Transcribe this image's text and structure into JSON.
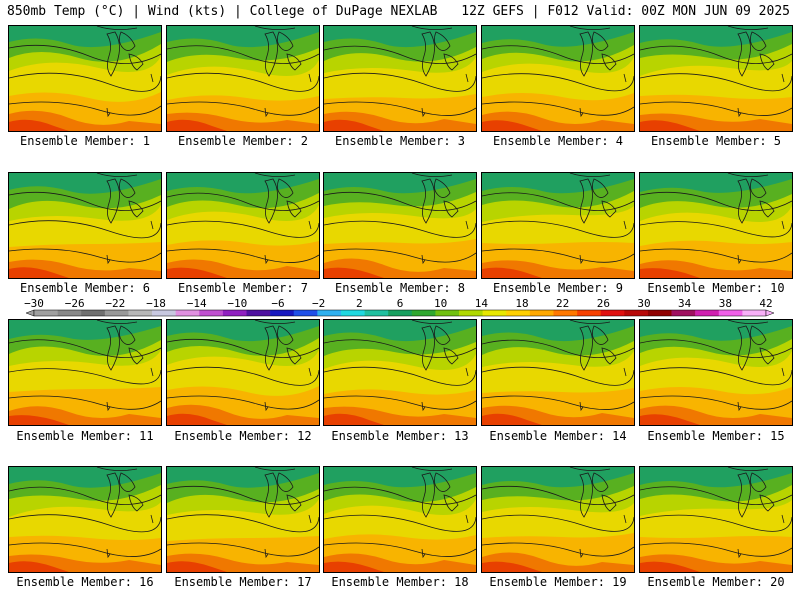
{
  "header": {
    "left": "850mb Temp (°C) | Wind (kts) | College of DuPage NEXLAB",
    "right": "12Z GEFS | F012 Valid: 00Z MON JUN 09 2025"
  },
  "members": [
    "Ensemble Member: 1",
    "Ensemble Member: 2",
    "Ensemble Member: 3",
    "Ensemble Member: 4",
    "Ensemble Member: 5",
    "Ensemble Member: 6",
    "Ensemble Member: 7",
    "Ensemble Member: 8",
    "Ensemble Member: 9",
    "Ensemble Member: 10",
    "Ensemble Member: 11",
    "Ensemble Member: 12",
    "Ensemble Member: 13",
    "Ensemble Member: 14",
    "Ensemble Member: 15",
    "Ensemble Member: 16",
    "Ensemble Member: 17",
    "Ensemble Member: 18",
    "Ensemble Member: 19",
    "Ensemble Member: 20"
  ],
  "colorbar": {
    "labels": [
      "-30",
      "-26",
      "-22",
      "-18",
      "-14",
      "-10",
      "-6",
      "-2",
      "2",
      "6",
      "10",
      "14",
      "18",
      "22",
      "26",
      "30",
      "34",
      "38",
      "42"
    ],
    "colors": [
      "#a0a0a0",
      "#888888",
      "#707070",
      "#999999",
      "#b8b8b8",
      "#c8c8e0",
      "#e090e0",
      "#c050d0",
      "#9020c0",
      "#5010a0",
      "#1818c0",
      "#2050e8",
      "#30b0f0",
      "#20d8e0",
      "#20c0a0",
      "#18a060",
      "#30a830",
      "#70c010",
      "#b0d800",
      "#e8e800",
      "#ffd000",
      "#ffa800",
      "#ff7800",
      "#f84000",
      "#e01010",
      "#b80808",
      "#900000",
      "#a01060",
      "#d020b0",
      "#f060e8",
      "#f8b0f8"
    ]
  }
}
